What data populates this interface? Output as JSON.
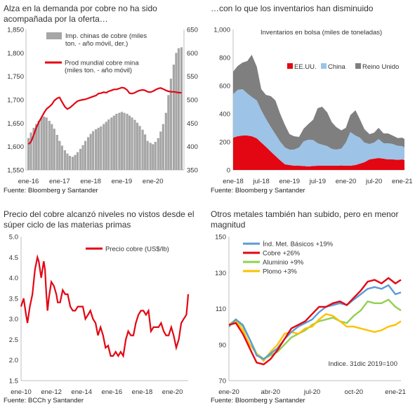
{
  "panels": [
    {
      "title": "Alza en la demanda por cobre no ha sido acompañada por la oferta…",
      "source": "Fuente: Bloomberg y Santander"
    },
    {
      "title": "…con lo que los inventarios han disminuido",
      "source": "Fuente: Bloomberg y Santander"
    },
    {
      "title": "Precio del cobre alcanzó niveles no vistos desde el súper ciclo de las materias primas",
      "source": "Fuente: BCCh y Santander"
    },
    {
      "title": "Otros metales también han subido, pero en menor magnitud",
      "source": "Fuente: Bloomberg y Santander"
    }
  ],
  "colors": {
    "red": "#e30613",
    "gray": "#a6a6a6",
    "darkgray": "#7f7f7f",
    "lightblue": "#9dc3e6",
    "blue": "#5b9bd5",
    "green": "#92d050",
    "yellow": "#ffc000",
    "axis": "#bfbfbf"
  },
  "chart_data": [
    {
      "type": "bar",
      "title": "Alza en la demanda por cobre no ha sido acompañada por la oferta…",
      "x_ticks": [
        "ene-16",
        "ene-17",
        "ene-18",
        "ene-19",
        "ene-20"
      ],
      "ylim_left": [
        1550,
        1850
      ],
      "yticks_left": [
        "1,550",
        "1,600",
        "1,650",
        "1,700",
        "1,750",
        "1,800",
        "1,850"
      ],
      "ylim_right": [
        350,
        650
      ],
      "yticks_right": [
        "350",
        "400",
        "450",
        "500",
        "550",
        "600",
        "650"
      ],
      "series": [
        {
          "name": "Imp. chinas de cobre (miles ton. - año móvil, der.)",
          "axis": "right",
          "type": "bar",
          "x": [
            2016.0,
            2016.08,
            2016.17,
            2016.25,
            2016.33,
            2016.42,
            2016.5,
            2016.58,
            2016.67,
            2016.75,
            2016.83,
            2016.92,
            2017.0,
            2017.08,
            2017.17,
            2017.25,
            2017.33,
            2017.42,
            2017.5,
            2017.58,
            2017.67,
            2017.75,
            2017.83,
            2017.92,
            2018.0,
            2018.08,
            2018.17,
            2018.25,
            2018.33,
            2018.42,
            2018.5,
            2018.58,
            2018.67,
            2018.75,
            2018.83,
            2018.92,
            2019.0,
            2019.08,
            2019.17,
            2019.25,
            2019.33,
            2019.42,
            2019.5,
            2019.58,
            2019.67,
            2019.75,
            2019.83,
            2019.92,
            2020.0,
            2020.08,
            2020.17,
            2020.25,
            2020.33,
            2020.42,
            2020.5,
            2020.58,
            2020.67,
            2020.75,
            2020.83,
            2020.92
          ],
          "values": [
            418,
            430,
            440,
            448,
            455,
            462,
            464,
            462,
            455,
            448,
            438,
            425,
            412,
            402,
            392,
            385,
            380,
            378,
            382,
            388,
            395,
            403,
            412,
            420,
            427,
            433,
            437,
            440,
            443,
            448,
            453,
            458,
            462,
            466,
            470,
            472,
            474,
            472,
            470,
            466,
            462,
            457,
            451,
            444,
            436,
            426,
            412,
            408,
            405,
            410,
            418,
            432,
            448,
            472,
            510,
            545,
            575,
            600,
            610,
            612
          ]
        },
        {
          "name": "Prod mundial cobre mina (miles ton. - año móvil)",
          "axis": "left",
          "type": "line",
          "x": [
            2016.0,
            2016.08,
            2016.17,
            2016.25,
            2016.33,
            2016.42,
            2016.5,
            2016.58,
            2016.67,
            2016.75,
            2016.83,
            2016.92,
            2017.0,
            2017.08,
            2017.17,
            2017.25,
            2017.33,
            2017.42,
            2017.5,
            2017.58,
            2017.67,
            2017.75,
            2017.83,
            2017.92,
            2018.0,
            2018.08,
            2018.17,
            2018.25,
            2018.33,
            2018.42,
            2018.5,
            2018.58,
            2018.67,
            2018.75,
            2018.83,
            2018.92,
            2019.0,
            2019.08,
            2019.17,
            2019.25,
            2019.33,
            2019.42,
            2019.5,
            2019.58,
            2019.67,
            2019.75,
            2019.83,
            2019.92,
            2020.0,
            2020.08,
            2020.17,
            2020.25,
            2020.33,
            2020.42,
            2020.5,
            2020.58,
            2020.67,
            2020.75,
            2020.83,
            2020.92
          ],
          "values": [
            1605,
            1610,
            1625,
            1640,
            1652,
            1662,
            1672,
            1680,
            1685,
            1690,
            1698,
            1703,
            1705,
            1695,
            1685,
            1680,
            1683,
            1688,
            1693,
            1697,
            1699,
            1700,
            1701,
            1703,
            1705,
            1707,
            1709,
            1713,
            1714,
            1716,
            1715,
            1718,
            1720,
            1722,
            1722,
            1724,
            1726,
            1725,
            1721,
            1714,
            1713,
            1715,
            1718,
            1720,
            1721,
            1720,
            1717,
            1716,
            1718,
            1721,
            1724,
            1725,
            1723,
            1720,
            1718,
            1717,
            1717,
            1716,
            1715,
            1715
          ]
        }
      ]
    },
    {
      "type": "area",
      "title": "…con lo que los inventarios han disminuido",
      "subtitle": "Inventarios en bolsa (miles de toneladas)",
      "x_ticks": [
        "ene-18",
        "jul-18",
        "ene-19",
        "jul-19",
        "ene-20",
        "jul-20",
        "ene-21"
      ],
      "ylim": [
        0,
        1000
      ],
      "yticks": [
        "0",
        "200",
        "400",
        "600",
        "800",
        "1,000"
      ],
      "x": [
        2018.0,
        2018.08,
        2018.17,
        2018.25,
        2018.33,
        2018.42,
        2018.5,
        2018.58,
        2018.67,
        2018.75,
        2018.83,
        2018.92,
        2019.0,
        2019.08,
        2019.17,
        2019.25,
        2019.33,
        2019.42,
        2019.5,
        2019.58,
        2019.67,
        2019.75,
        2019.83,
        2019.92,
        2020.0,
        2020.08,
        2020.17,
        2020.25,
        2020.33,
        2020.42,
        2020.5,
        2020.58,
        2020.67,
        2020.75,
        2020.83,
        2020.92,
        2021.0,
        2021.04
      ],
      "series": [
        {
          "name": "EE.UU.",
          "values": [
            230,
            240,
            245,
            245,
            240,
            225,
            195,
            165,
            130,
            100,
            70,
            40,
            35,
            30,
            30,
            28,
            25,
            28,
            30,
            30,
            30,
            30,
            30,
            32,
            30,
            30,
            35,
            45,
            55,
            75,
            80,
            85,
            80,
            75,
            75,
            72,
            75,
            70
          ]
        },
        {
          "name": "China",
          "values": [
            310,
            330,
            330,
            300,
            280,
            270,
            230,
            200,
            175,
            155,
            135,
            120,
            110,
            115,
            130,
            175,
            190,
            185,
            160,
            150,
            140,
            120,
            115,
            120,
            165,
            240,
            210,
            185,
            140,
            110,
            115,
            135,
            110,
            115,
            110,
            100,
            95,
            90
          ]
        },
        {
          "name": "Reino Unido",
          "values": [
            160,
            170,
            190,
            230,
            300,
            240,
            150,
            170,
            220,
            240,
            200,
            160,
            110,
            95,
            75,
            90,
            110,
            145,
            250,
            270,
            240,
            190,
            160,
            130,
            105,
            120,
            180,
            130,
            95,
            70,
            70,
            80,
            70,
            70,
            60,
            55,
            60,
            60
          ]
        }
      ]
    },
    {
      "type": "line",
      "title": "Precio del cobre alcanzó niveles no vistos desde el súper ciclo de las materias primas",
      "x_ticks": [
        "ene-10",
        "ene-12",
        "ene-14",
        "ene-16",
        "ene-18",
        "ene-20"
      ],
      "ylim": [
        1.5,
        5.0
      ],
      "yticks": [
        "1.5",
        "2.0",
        "2.5",
        "3.0",
        "3.5",
        "4.0",
        "4.5",
        "5.0"
      ],
      "series": [
        {
          "name": "Precio cobre (US$/lb)",
          "x": [
            2010.0,
            2010.17,
            2010.33,
            2010.42,
            2010.58,
            2010.75,
            2010.92,
            2011.08,
            2011.17,
            2011.33,
            2011.5,
            2011.58,
            2011.67,
            2011.75,
            2011.83,
            2012.0,
            2012.17,
            2012.33,
            2012.42,
            2012.58,
            2012.75,
            2012.92,
            2013.08,
            2013.25,
            2013.42,
            2013.58,
            2013.75,
            2013.92,
            2014.08,
            2014.25,
            2014.42,
            2014.58,
            2014.75,
            2014.92,
            2015.08,
            2015.25,
            2015.42,
            2015.58,
            2015.75,
            2015.92,
            2016.08,
            2016.25,
            2016.42,
            2016.58,
            2016.75,
            2016.92,
            2017.08,
            2017.25,
            2017.42,
            2017.58,
            2017.75,
            2017.92,
            2018.08,
            2018.25,
            2018.42,
            2018.58,
            2018.75,
            2018.92,
            2019.08,
            2019.25,
            2019.42,
            2019.58,
            2019.75,
            2019.92,
            2020.08,
            2020.25,
            2020.42,
            2020.58,
            2020.75,
            2020.92,
            2021.0,
            2021.04
          ],
          "values": [
            3.3,
            3.5,
            3.1,
            2.9,
            3.3,
            3.6,
            4.2,
            4.5,
            4.4,
            4.0,
            4.4,
            4.2,
            3.6,
            3.2,
            3.5,
            3.9,
            3.8,
            3.6,
            3.4,
            3.4,
            3.7,
            3.6,
            3.6,
            3.3,
            3.2,
            3.2,
            3.3,
            3.3,
            3.3,
            3.0,
            3.1,
            3.2,
            3.0,
            2.9,
            2.6,
            2.8,
            2.6,
            2.3,
            2.35,
            2.1,
            2.1,
            2.2,
            2.1,
            2.2,
            2.1,
            2.5,
            2.7,
            2.6,
            2.6,
            2.9,
            3.1,
            3.2,
            3.2,
            3.1,
            3.2,
            2.7,
            2.8,
            2.8,
            2.8,
            2.9,
            2.7,
            2.6,
            2.6,
            2.8,
            2.6,
            2.3,
            2.5,
            2.9,
            3.0,
            3.1,
            3.4,
            3.6
          ]
        }
      ]
    },
    {
      "type": "line",
      "title": "Otros metales también han subido, pero en menor magnitud",
      "annotation": "Indice. 31dic 2019=100",
      "x_ticks": [
        "ene-20",
        "abr-20",
        "jul-20",
        "oct-20",
        "ene-21"
      ],
      "ylim": [
        70,
        150
      ],
      "yticks": [
        "70",
        "90",
        "110",
        "130",
        "150"
      ],
      "x": [
        0,
        0.5,
        1,
        1.5,
        2,
        2.5,
        3,
        3.5,
        4,
        4.5,
        5,
        5.5,
        6,
        6.5,
        7,
        7.5,
        8,
        8.5,
        9,
        9.5,
        10,
        10.5,
        11,
        11.5,
        12,
        12.4
      ],
      "series": [
        {
          "name": "Índ. Met. Básicos +19%",
          "values": [
            100,
            104,
            101,
            93,
            84,
            82,
            85,
            88,
            93,
            97,
            100,
            102,
            104,
            108,
            111,
            112,
            113,
            112,
            115,
            118,
            121,
            122,
            121,
            123,
            118,
            119
          ]
        },
        {
          "name": "Cobre +26%",
          "values": [
            101,
            102,
            96,
            88,
            80,
            79,
            82,
            87,
            93,
            99,
            101,
            103,
            107,
            111,
            111,
            113,
            114,
            112,
            116,
            120,
            125,
            126,
            124,
            127,
            124,
            126
          ]
        },
        {
          "name": "Aluminio +9%",
          "values": [
            101,
            104,
            100,
            93,
            85,
            82,
            84,
            86,
            90,
            94,
            96,
            98,
            101,
            103,
            104,
            105,
            103,
            102,
            106,
            109,
            114,
            113,
            113,
            115,
            111,
            109
          ]
        },
        {
          "name": "Plomo +3%",
          "values": [
            101,
            103,
            98,
            90,
            85,
            81,
            86,
            90,
            96,
            97,
            96,
            99,
            100,
            104,
            107,
            106,
            103,
            100,
            100,
            99,
            98,
            97,
            98,
            100,
            101,
            103
          ]
        }
      ]
    }
  ]
}
